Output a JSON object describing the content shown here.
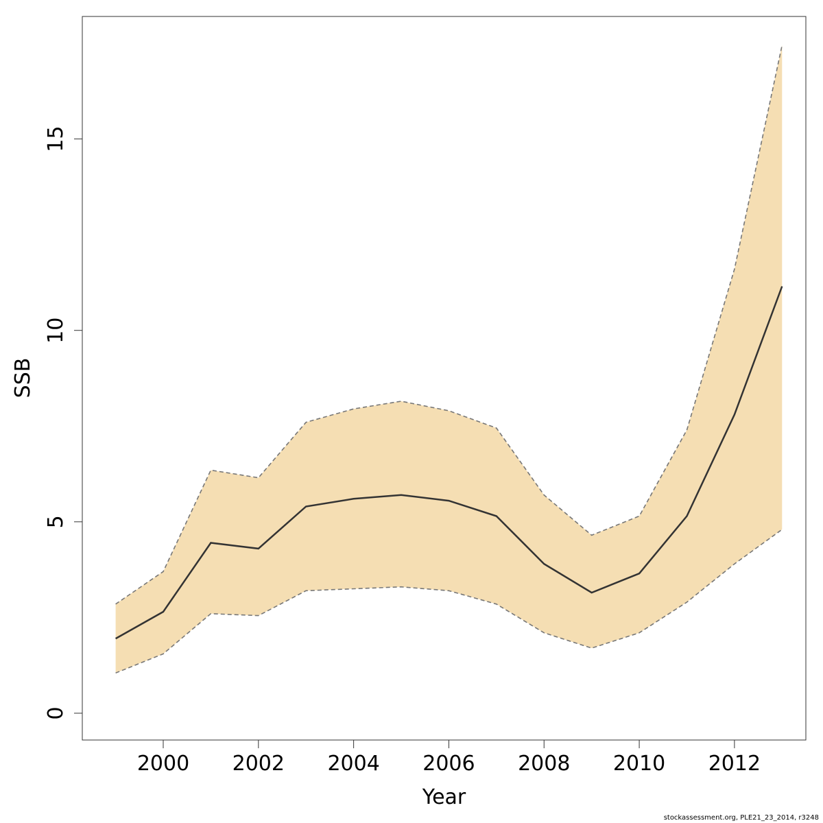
{
  "chart_data": {
    "type": "area",
    "xlabel": "Year",
    "ylabel": "SSB",
    "xlim": [
      1998.3,
      2013.5
    ],
    "ylim": [
      -0.7,
      18.2
    ],
    "x_ticks": [
      2000,
      2002,
      2004,
      2006,
      2008,
      2010,
      2012
    ],
    "y_ticks": [
      0,
      5,
      10,
      15
    ],
    "x": [
      1999,
      2000,
      2001,
      2002,
      2003,
      2004,
      2005,
      2006,
      2007,
      2008,
      2009,
      2010,
      2011,
      2012,
      2013
    ],
    "series": [
      {
        "role": "estimate",
        "values": [
          1.95,
          2.65,
          4.45,
          4.3,
          5.4,
          5.6,
          5.7,
          5.55,
          5.15,
          3.9,
          3.15,
          3.65,
          5.15,
          7.8,
          11.15
        ],
        "color": "#333333",
        "line_style": "solid"
      },
      {
        "role": "upper",
        "values": [
          2.85,
          3.7,
          6.35,
          6.15,
          7.6,
          7.95,
          8.15,
          7.9,
          7.45,
          5.7,
          4.65,
          5.15,
          7.4,
          11.6,
          17.45
        ],
        "color": "#777777",
        "line_style": "dashed"
      },
      {
        "role": "lower",
        "values": [
          1.05,
          1.55,
          2.6,
          2.55,
          3.2,
          3.25,
          3.3,
          3.2,
          2.85,
          2.1,
          1.7,
          2.1,
          2.9,
          3.9,
          4.8
        ],
        "color": "#777777",
        "line_style": "dashed"
      }
    ],
    "band_fill": "#f5deb3",
    "grid": false,
    "legend": "none"
  },
  "footer": {
    "credit": "stockassessment.org, PLE21_23_2014, r3248"
  }
}
